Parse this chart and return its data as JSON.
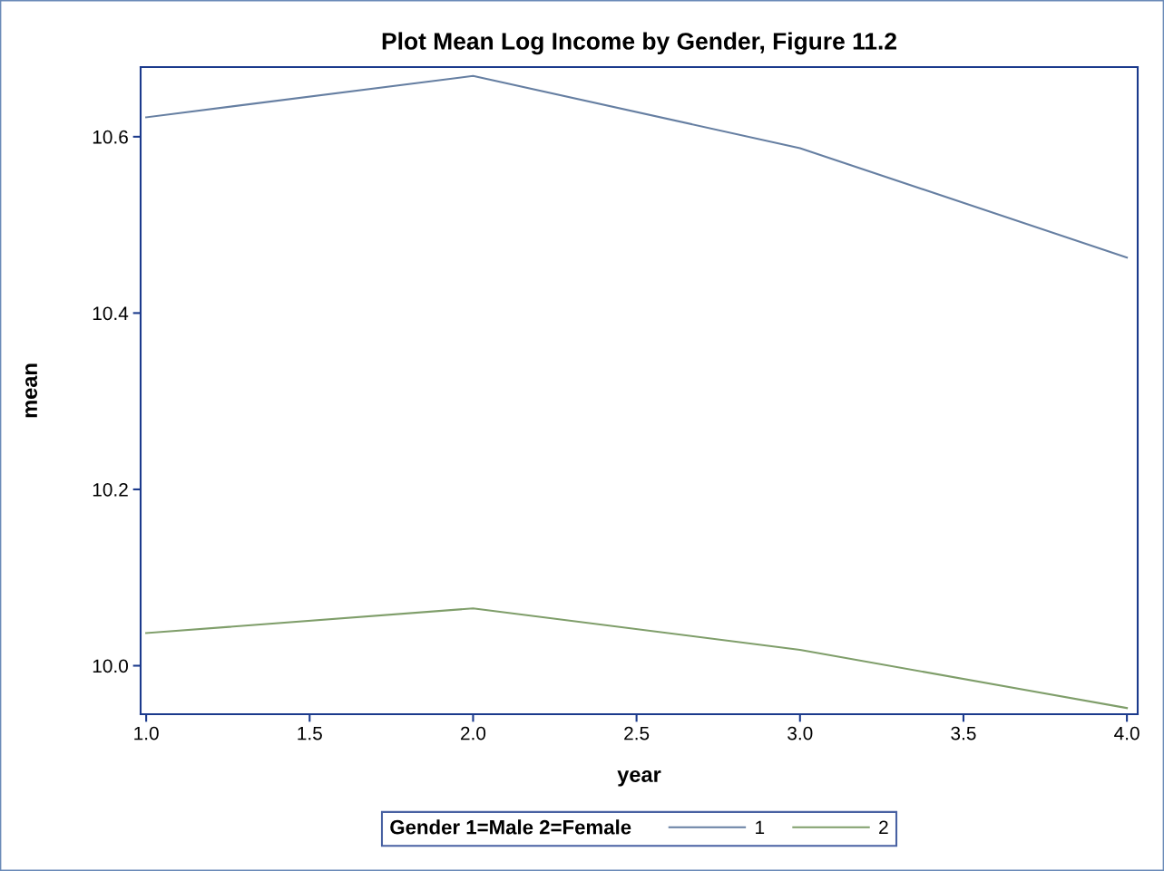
{
  "chart_data": {
    "type": "line",
    "title": "Plot Mean Log Income by Gender, Figure 11.2",
    "xlabel": "year",
    "ylabel": "mean",
    "legend_title": "Gender 1=Male 2=Female",
    "x": [
      1.0,
      2.0,
      3.0,
      4.0
    ],
    "series": [
      {
        "name": "1",
        "color": "#667fa2",
        "values": [
          10.622,
          10.669,
          10.587,
          10.463
        ]
      },
      {
        "name": "2",
        "color": "#7f9e6a",
        "values": [
          10.037,
          10.065,
          10.018,
          9.952
        ]
      }
    ],
    "xlim": [
      0.983,
      4.033
    ],
    "ylim": [
      9.945,
      10.679
    ],
    "xticks": [
      {
        "value": 1.0,
        "label": "1.0"
      },
      {
        "value": 1.5,
        "label": "1.5"
      },
      {
        "value": 2.0,
        "label": "2.0"
      },
      {
        "value": 2.5,
        "label": "2.5"
      },
      {
        "value": 3.0,
        "label": "3.0"
      },
      {
        "value": 3.5,
        "label": "3.5"
      },
      {
        "value": 4.0,
        "label": "4.0"
      }
    ],
    "yticks": [
      {
        "value": 10.0,
        "label": "10.0"
      },
      {
        "value": 10.2,
        "label": "10.2"
      },
      {
        "value": 10.4,
        "label": "10.4"
      },
      {
        "value": 10.6,
        "label": "10.6"
      }
    ],
    "grid": false,
    "legend": "bottom",
    "marker": "none",
    "line_style": "solid"
  }
}
